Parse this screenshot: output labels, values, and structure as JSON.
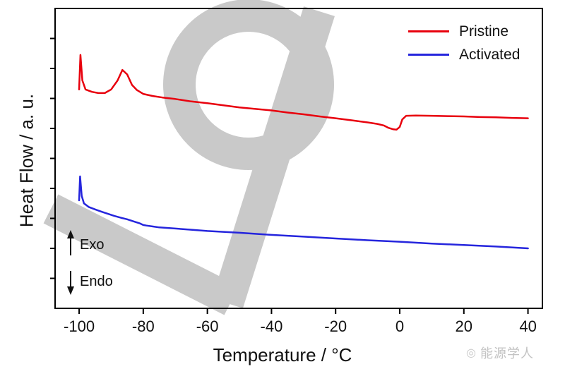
{
  "figure": {
    "xlabel": "Temperature / °C",
    "ylabel": "Heat Flow / a. u.",
    "exo_label": "Exo",
    "endo_label": "Endo"
  },
  "watermark": {
    "label": "能源学人",
    "icon": "aperture-icon",
    "logo_shape_color": "#c9c9c9"
  },
  "chart_data": {
    "type": "line",
    "title": "",
    "xlabel": "Temperature / °C",
    "ylabel": "Heat Flow / a. u.",
    "xlim": [
      -107.5,
      44.5
    ],
    "ylim": [
      0,
      10
    ],
    "x_ticks": [
      -100,
      -80,
      -60,
      -40,
      -20,
      0,
      20,
      40
    ],
    "y_ticks": [
      1,
      2,
      3,
      4,
      5,
      6,
      7,
      8,
      9
    ],
    "grid": false,
    "legend_position": "top-right",
    "series": [
      {
        "name": "Pristine",
        "color": "#e8000d",
        "points": [
          [
            -100,
            7.3
          ],
          [
            -99.6,
            8.45
          ],
          [
            -99,
            7.6
          ],
          [
            -98,
            7.3
          ],
          [
            -96,
            7.22
          ],
          [
            -94,
            7.18
          ],
          [
            -92,
            7.18
          ],
          [
            -90,
            7.3
          ],
          [
            -88,
            7.6
          ],
          [
            -86.5,
            7.95
          ],
          [
            -85,
            7.8
          ],
          [
            -83.5,
            7.45
          ],
          [
            -82,
            7.28
          ],
          [
            -80,
            7.15
          ],
          [
            -77,
            7.08
          ],
          [
            -74,
            7.03
          ],
          [
            -70,
            6.98
          ],
          [
            -65,
            6.9
          ],
          [
            -60,
            6.84
          ],
          [
            -55,
            6.77
          ],
          [
            -50,
            6.7
          ],
          [
            -45,
            6.65
          ],
          [
            -40,
            6.6
          ],
          [
            -35,
            6.53
          ],
          [
            -30,
            6.47
          ],
          [
            -25,
            6.4
          ],
          [
            -20,
            6.34
          ],
          [
            -15,
            6.27
          ],
          [
            -10,
            6.2
          ],
          [
            -7,
            6.15
          ],
          [
            -5,
            6.1
          ],
          [
            -3.5,
            6.02
          ],
          [
            -2,
            5.97
          ],
          [
            -1,
            5.96
          ],
          [
            0,
            6.05
          ],
          [
            0.8,
            6.3
          ],
          [
            2,
            6.42
          ],
          [
            5,
            6.43
          ],
          [
            10,
            6.42
          ],
          [
            15,
            6.41
          ],
          [
            20,
            6.4
          ],
          [
            25,
            6.38
          ],
          [
            30,
            6.37
          ],
          [
            35,
            6.35
          ],
          [
            40,
            6.34
          ]
        ]
      },
      {
        "name": "Activated",
        "color": "#2525dd",
        "points": [
          [
            -100,
            3.6
          ],
          [
            -99.7,
            4.4
          ],
          [
            -99.2,
            3.75
          ],
          [
            -98.5,
            3.5
          ],
          [
            -97,
            3.38
          ],
          [
            -95,
            3.3
          ],
          [
            -93,
            3.22
          ],
          [
            -91,
            3.15
          ],
          [
            -89,
            3.08
          ],
          [
            -87,
            3.02
          ],
          [
            -85,
            2.97
          ],
          [
            -83,
            2.9
          ],
          [
            -81,
            2.83
          ],
          [
            -80,
            2.78
          ],
          [
            -79,
            2.76
          ],
          [
            -77,
            2.73
          ],
          [
            -75,
            2.7
          ],
          [
            -70,
            2.66
          ],
          [
            -65,
            2.62
          ],
          [
            -60,
            2.58
          ],
          [
            -50,
            2.52
          ],
          [
            -40,
            2.45
          ],
          [
            -30,
            2.39
          ],
          [
            -20,
            2.33
          ],
          [
            -10,
            2.27
          ],
          [
            0,
            2.22
          ],
          [
            10,
            2.16
          ],
          [
            20,
            2.11
          ],
          [
            30,
            2.06
          ],
          [
            40,
            2.0
          ]
        ]
      }
    ]
  }
}
